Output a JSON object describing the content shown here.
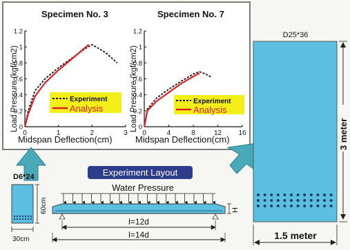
{
  "colors": {
    "panel_blue": "#5bbfe0",
    "panel_dark": "#2a6f9a",
    "arrow_teal": "#4aa9b8",
    "analysis_red": "#e02020",
    "experiment_black": "#111111",
    "legend_yellow": "#f4ef18",
    "layout_badge": "#2d3d8c"
  },
  "charts": {
    "specimen3": {
      "title": "Specimen No. 3",
      "ylabel": "Load Pressure (kgf/cm2)",
      "yticks": [
        "0",
        "0.2",
        "0.4",
        "0.6",
        "0.8",
        "1",
        "1.2"
      ],
      "xticks": [
        "0",
        "1",
        "2",
        "3"
      ],
      "legend_experiment": "Experiment",
      "legend_analysis": "Analysis"
    },
    "specimen7": {
      "title": "Specimen No. 7",
      "ylabel": "Load Pressure (kgf/cm2)",
      "yticks": [
        "0",
        "0.2",
        "0.4",
        "0.6",
        "0.8",
        "1",
        "1.2"
      ],
      "xticks": [
        "0",
        "4",
        "8",
        "12",
        "16"
      ],
      "legend_experiment": "Experiment",
      "legend_analysis": "Analysis"
    },
    "shared_xlabel": "Midspan Deflection(cm)"
  },
  "chart_data": [
    {
      "type": "line",
      "title": "Specimen No. 3",
      "xlabel": "Midspan Deflection(cm)",
      "ylabel": "Load Pressure (kgf/cm2)",
      "xlim": [
        0,
        3
      ],
      "ylim": [
        0,
        1.2
      ],
      "legend": "bottom-right",
      "series": [
        {
          "name": "Experiment",
          "style": "dashed",
          "color": "#111111",
          "x": [
            0,
            0.1,
            0.3,
            0.6,
            1.0,
            1.4,
            1.8,
            2.0,
            2.4,
            2.75
          ],
          "y": [
            0,
            0.2,
            0.45,
            0.6,
            0.74,
            0.86,
            0.98,
            1.03,
            0.93,
            0.8
          ]
        },
        {
          "name": "Analysis",
          "style": "solid",
          "color": "#e02020",
          "x": [
            0,
            0.1,
            0.3,
            0.6,
            1.0,
            1.4,
            1.9
          ],
          "y": [
            0,
            0.16,
            0.38,
            0.55,
            0.71,
            0.85,
            1.03
          ]
        }
      ]
    },
    {
      "type": "line",
      "title": "Specimen No. 7",
      "xlabel": "Midspan Deflection(cm)",
      "ylabel": "Load Pressure (kgf/cm2)",
      "xlim": [
        0,
        16
      ],
      "ylim": [
        0,
        1.2
      ],
      "legend": "bottom-right",
      "series": [
        {
          "name": "Experiment",
          "style": "dashed",
          "color": "#111111",
          "x": [
            0,
            0.5,
            2,
            4,
            6,
            8,
            9,
            10,
            11
          ],
          "y": [
            0,
            0.22,
            0.36,
            0.47,
            0.57,
            0.66,
            0.69,
            0.66,
            0.62
          ]
        },
        {
          "name": "Analysis",
          "style": "solid",
          "color": "#e02020",
          "x": [
            0,
            0.5,
            2,
            4,
            6,
            8,
            9
          ],
          "y": [
            0,
            0.2,
            0.32,
            0.43,
            0.54,
            0.63,
            0.67
          ]
        }
      ]
    }
  ],
  "section": {
    "rebar_label": "D6*24",
    "height_label": "60cm",
    "width_label": "30cm"
  },
  "layout": {
    "badge": "Experiment Layout",
    "water_pressure": "Water Pressure",
    "span_inner": "l=12d",
    "span_outer": "l=14d",
    "h_label": "H"
  },
  "panel": {
    "rebar_label": "D25*36",
    "height_label": "3 meter",
    "width_label": "1.5 meter"
  }
}
